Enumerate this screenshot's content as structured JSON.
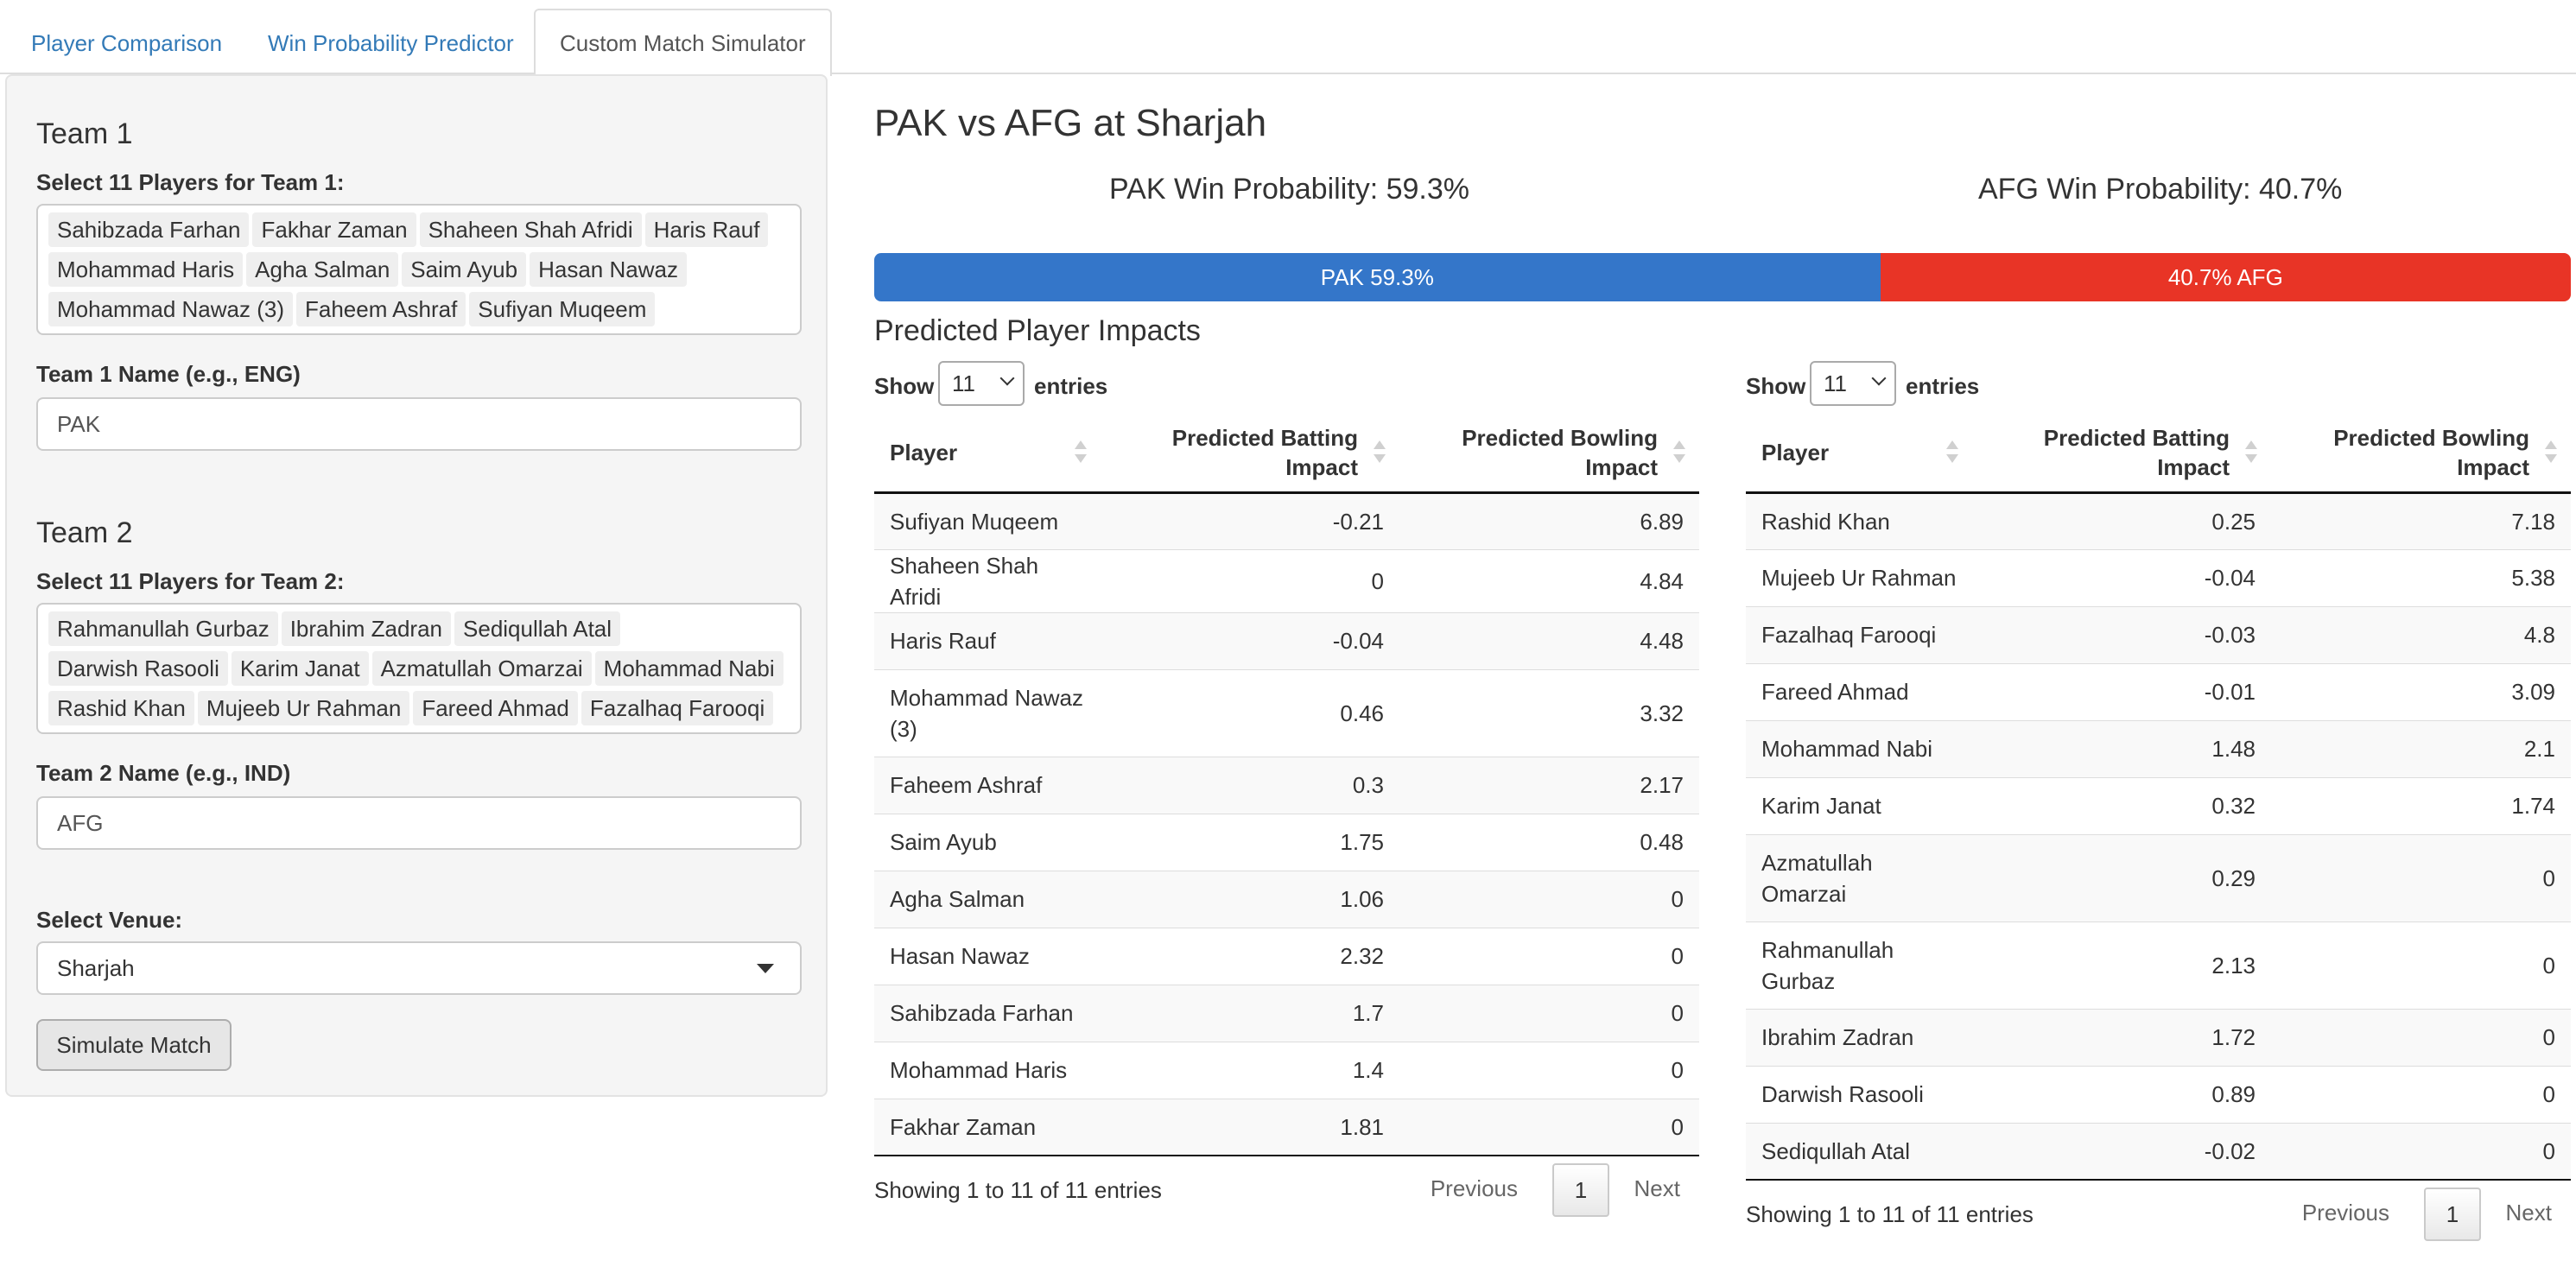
{
  "tabs": [
    {
      "label": "Player Comparison",
      "active": false
    },
    {
      "label": "Win Probability Predictor",
      "active": false
    },
    {
      "label": "Custom Match Simulator",
      "active": true
    }
  ],
  "sidebar": {
    "team1": {
      "heading": "Team 1",
      "select_label": "Select 11 Players for Team 1:",
      "players": [
        "Sahibzada Farhan",
        "Fakhar Zaman",
        "Shaheen Shah Afridi",
        "Haris Rauf",
        "Mohammad Haris",
        "Agha Salman",
        "Saim Ayub",
        "Hasan Nawaz",
        "Mohammad Nawaz (3)",
        "Faheem Ashraf",
        "Sufiyan Muqeem"
      ],
      "name_label": "Team 1 Name (e.g., ENG)",
      "name_value": "PAK"
    },
    "team2": {
      "heading": "Team 2",
      "select_label": "Select 11 Players for Team 2:",
      "players": [
        "Rahmanullah Gurbaz",
        "Ibrahim Zadran",
        "Sediqullah Atal",
        "Darwish Rasooli",
        "Karim Janat",
        "Azmatullah Omarzai",
        "Mohammad Nabi",
        "Rashid Khan",
        "Mujeeb Ur Rahman",
        "Fareed Ahmad",
        "Fazalhaq Farooqi"
      ],
      "name_label": "Team 2 Name (e.g., IND)",
      "name_value": "AFG"
    },
    "venue_label": "Select Venue:",
    "venue_value": "Sharjah",
    "simulate_button": "Simulate Match"
  },
  "main": {
    "title": "PAK vs AFG at Sharjah",
    "team1_prob_text": "PAK Win Probability: 59.3%",
    "team2_prob_text": "AFG Win Probability: 40.7%",
    "team1_prob": 59.3,
    "team2_prob": 40.7,
    "bar_team1_label": "PAK 59.3%",
    "bar_team2_label": "40.7% AFG",
    "team1_color": "#3476c9",
    "team2_color": "#e83426",
    "impacts_heading": "Predicted Player Impacts"
  },
  "tables": [
    {
      "show_label": "Show",
      "entries_label": "entries",
      "page_length": "11",
      "columns": [
        "Player",
        "Predicted Batting Impact",
        "Predicted Bowling Impact"
      ],
      "rows": [
        [
          "Sufiyan Muqeem",
          "-0.21",
          "6.89"
        ],
        [
          "Shaheen Shah Afridi",
          "0",
          "4.84"
        ],
        [
          "Haris Rauf",
          "-0.04",
          "4.48"
        ],
        [
          "Mohammad Nawaz (3)",
          "0.46",
          "3.32"
        ],
        [
          "Faheem Ashraf",
          "0.3",
          "2.17"
        ],
        [
          "Saim Ayub",
          "1.75",
          "0.48"
        ],
        [
          "Agha Salman",
          "1.06",
          "0"
        ],
        [
          "Hasan Nawaz",
          "2.32",
          "0"
        ],
        [
          "Sahibzada Farhan",
          "1.7",
          "0"
        ],
        [
          "Mohammad Haris",
          "1.4",
          "0"
        ],
        [
          "Fakhar Zaman",
          "1.81",
          "0"
        ]
      ],
      "info": "Showing 1 to 11 of 11 entries",
      "prev": "Previous",
      "page": "1",
      "next": "Next"
    },
    {
      "show_label": "Show",
      "entries_label": "entries",
      "page_length": "11",
      "columns": [
        "Player",
        "Predicted Batting Impact",
        "Predicted Bowling Impact"
      ],
      "rows": [
        [
          "Rashid Khan",
          "0.25",
          "7.18"
        ],
        [
          "Mujeeb Ur Rahman",
          "-0.04",
          "5.38"
        ],
        [
          "Fazalhaq Farooqi",
          "-0.03",
          "4.8"
        ],
        [
          "Fareed Ahmad",
          "-0.01",
          "3.09"
        ],
        [
          "Mohammad Nabi",
          "1.48",
          "2.1"
        ],
        [
          "Karim Janat",
          "0.32",
          "1.74"
        ],
        [
          "Azmatullah Omarzai",
          "0.29",
          "0"
        ],
        [
          "Rahmanullah Gurbaz",
          "2.13",
          "0"
        ],
        [
          "Ibrahim Zadran",
          "1.72",
          "0"
        ],
        [
          "Darwish Rasooli",
          "0.89",
          "0"
        ],
        [
          "Sediqullah Atal",
          "-0.02",
          "0"
        ]
      ],
      "info": "Showing 1 to 11 of 11 entries",
      "prev": "Previous",
      "page": "1",
      "next": "Next"
    }
  ]
}
